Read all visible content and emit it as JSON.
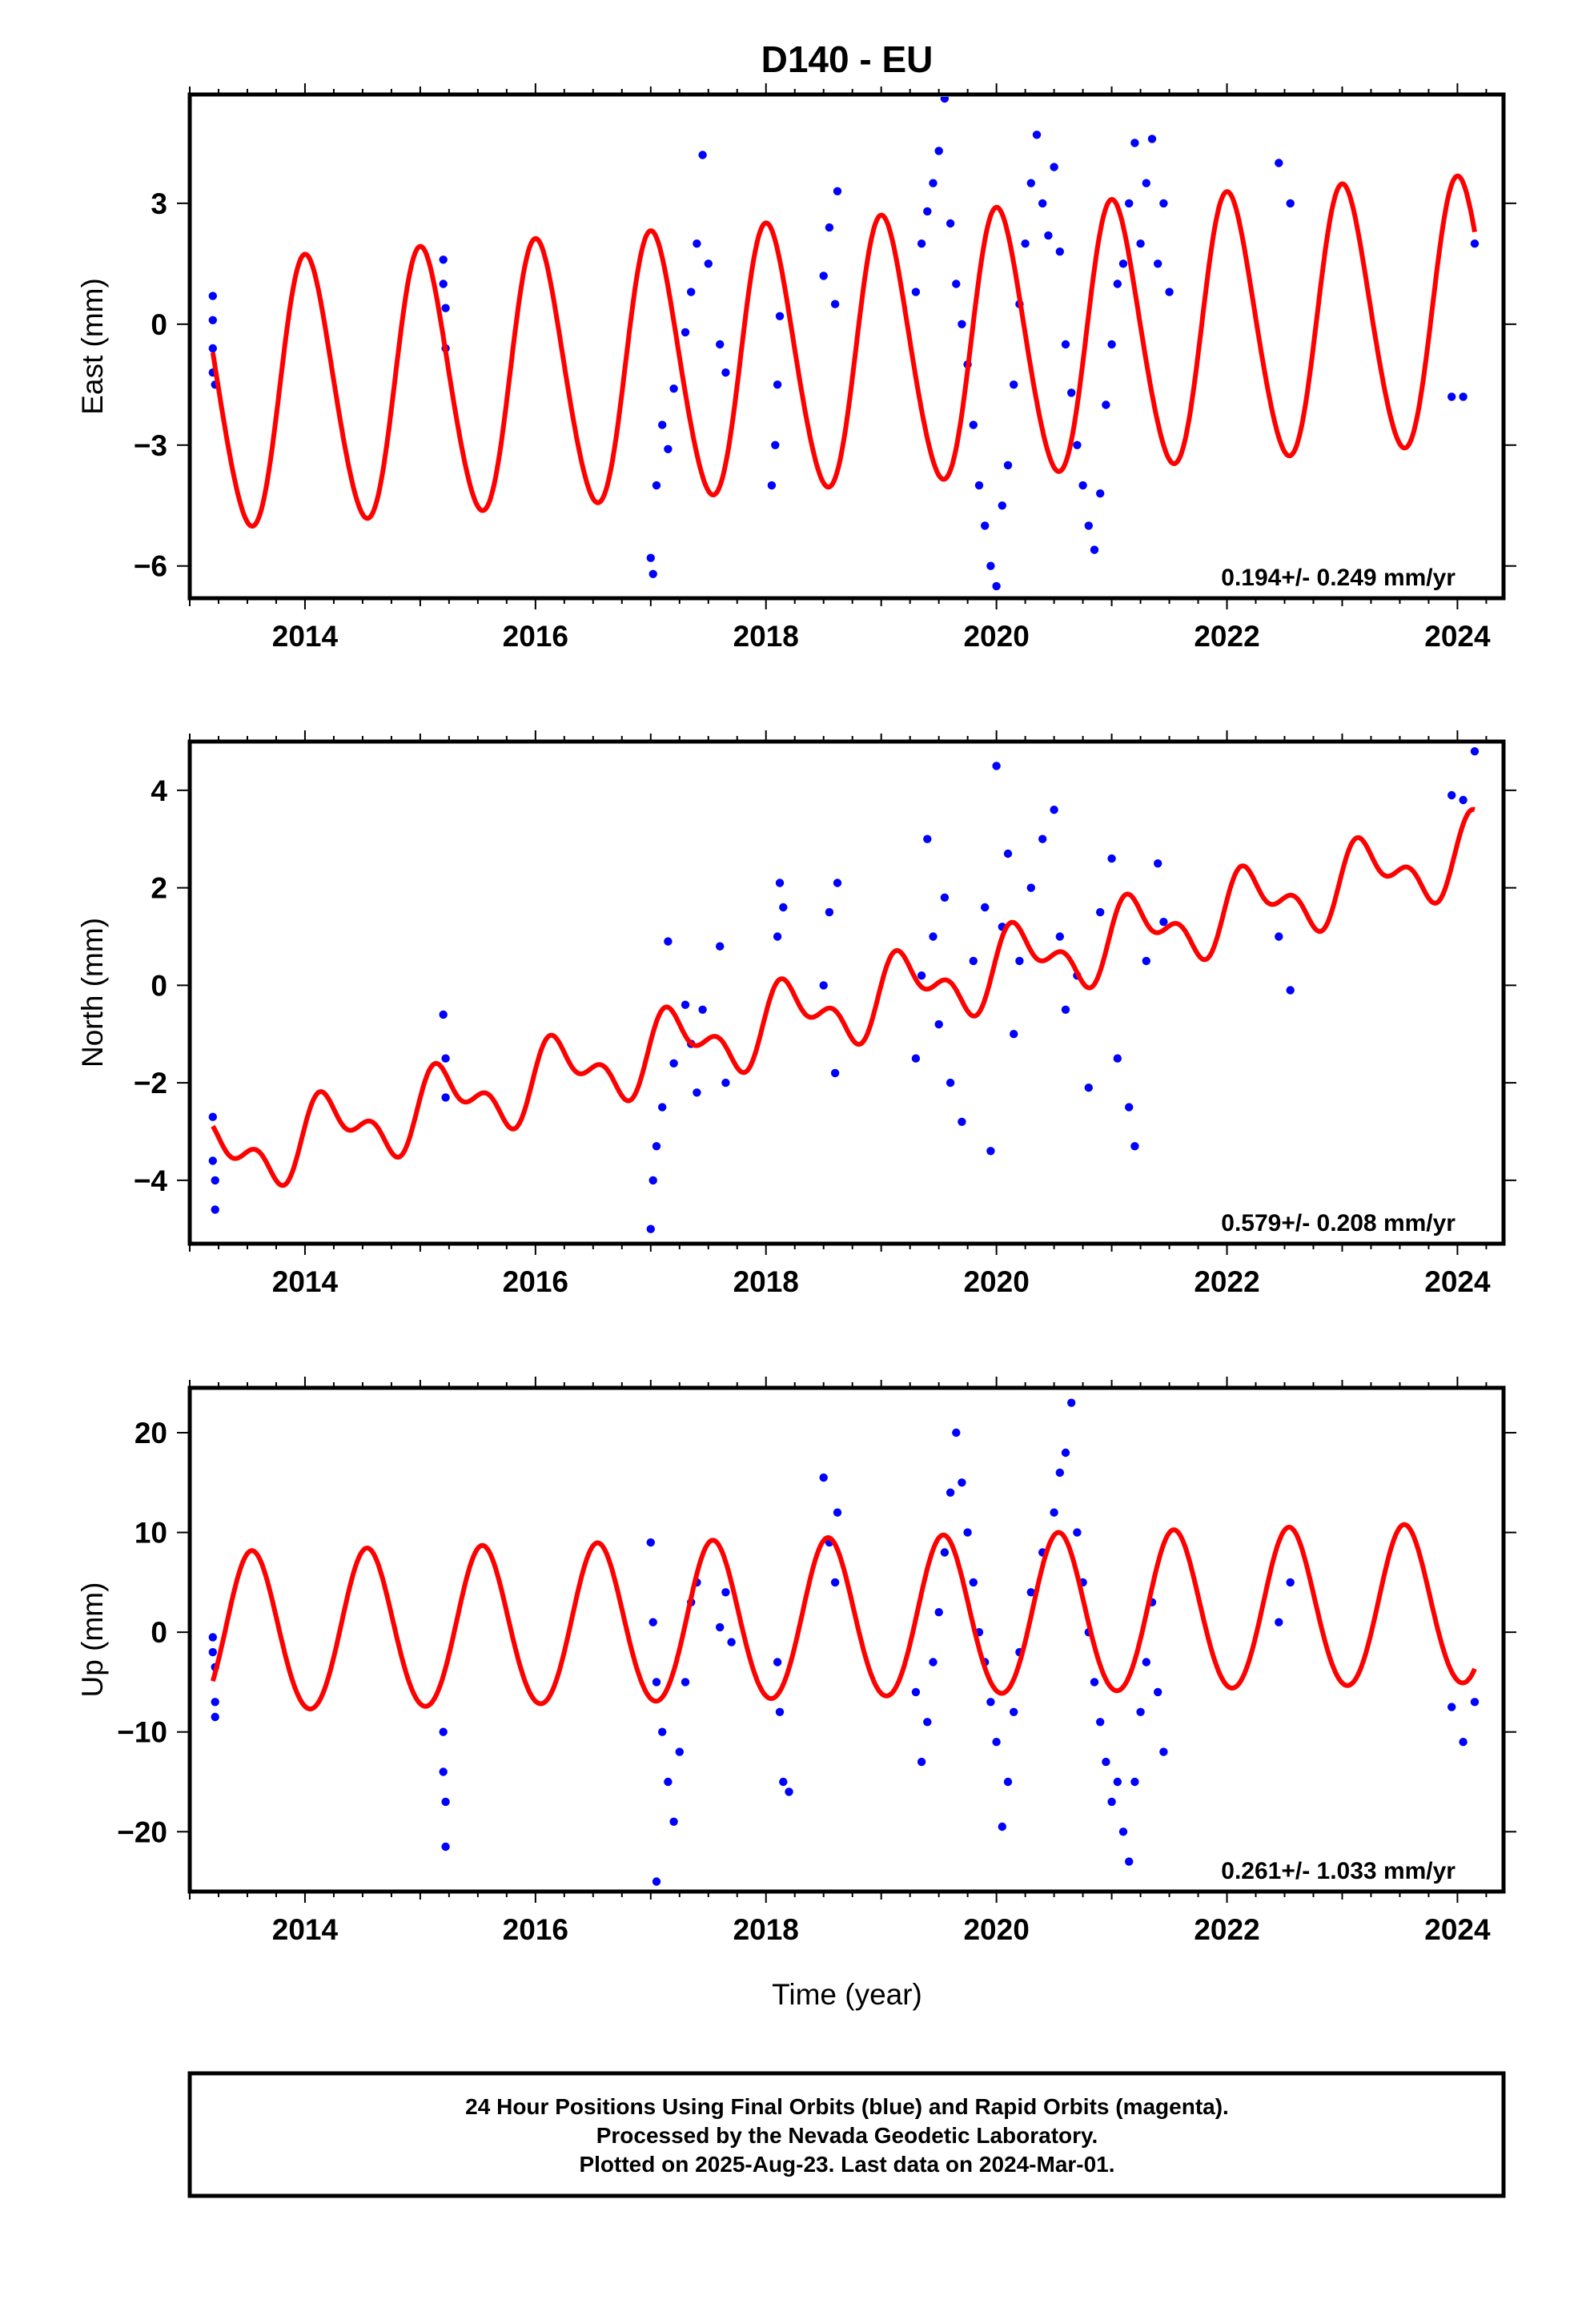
{
  "title": "D140 - EU",
  "colors": {
    "final_orbits": "#0000ff",
    "model": "#ff0000",
    "axis": "#000000"
  },
  "footer": {
    "line1": "24 Hour Positions Using Final Orbits (blue) and Rapid Orbits (magenta).",
    "line2": "Processed by the Nevada Geodetic Laboratory.",
    "line3": "Plotted on 2025-Aug-23. Last data on 2024-Mar-01."
  },
  "chart_data": [
    {
      "type": "scatter",
      "component": "east",
      "ylabel": "East (mm)",
      "xlabel": "",
      "xlim": [
        2013.0,
        2024.4
      ],
      "ylim": [
        -6.8,
        5.7
      ],
      "xticks": [
        2014,
        2016,
        2018,
        2020,
        2022,
        2024
      ],
      "xtick_labels": [
        "2014",
        "2016",
        "2018",
        "2020",
        "2022",
        "2024"
      ],
      "yticks": [
        -6,
        -3,
        0,
        3
      ],
      "ytick_labels": [
        "−6",
        "−3",
        "0",
        "3"
      ],
      "rate_label": "0.194+/- 0.249 mm/yr",
      "model": {
        "offset": -1.85,
        "rate": 0.194,
        "annual": 3.3,
        "semiannual": 0.25,
        "phase": 1.45
      },
      "series": [
        {
          "points": [
            [
              2013.2,
              -0.6
            ],
            [
              2013.2,
              0.1
            ],
            [
              2013.2,
              -1.2
            ],
            [
              2013.2,
              0.7
            ],
            [
              2013.22,
              -1.5
            ],
            [
              2015.2,
              1.6
            ],
            [
              2015.2,
              1.0
            ],
            [
              2015.22,
              -0.6
            ],
            [
              2015.22,
              0.4
            ],
            [
              2017.0,
              -5.8
            ],
            [
              2017.02,
              -6.2
            ],
            [
              2017.05,
              -4.0
            ],
            [
              2017.1,
              -2.5
            ],
            [
              2017.15,
              -3.1
            ],
            [
              2017.2,
              -1.6
            ],
            [
              2017.3,
              -0.2
            ],
            [
              2017.35,
              0.8
            ],
            [
              2017.4,
              2.0
            ],
            [
              2017.45,
              4.2
            ],
            [
              2017.5,
              1.5
            ],
            [
              2017.6,
              -0.5
            ],
            [
              2017.65,
              -1.2
            ],
            [
              2018.05,
              -4.0
            ],
            [
              2018.08,
              -3.0
            ],
            [
              2018.1,
              -1.5
            ],
            [
              2018.12,
              0.2
            ],
            [
              2018.5,
              1.2
            ],
            [
              2018.55,
              2.4
            ],
            [
              2018.6,
              0.5
            ],
            [
              2018.62,
              3.3
            ],
            [
              2019.3,
              0.8
            ],
            [
              2019.35,
              2.0
            ],
            [
              2019.4,
              2.8
            ],
            [
              2019.45,
              3.5
            ],
            [
              2019.5,
              4.3
            ],
            [
              2019.55,
              5.6
            ],
            [
              2019.6,
              2.5
            ],
            [
              2019.65,
              1.0
            ],
            [
              2019.7,
              0.0
            ],
            [
              2019.75,
              -1.0
            ],
            [
              2019.8,
              -2.5
            ],
            [
              2019.85,
              -4.0
            ],
            [
              2019.9,
              -5.0
            ],
            [
              2019.95,
              -6.0
            ],
            [
              2020.0,
              -6.5
            ],
            [
              2020.05,
              -4.5
            ],
            [
              2020.1,
              -3.5
            ],
            [
              2020.15,
              -1.5
            ],
            [
              2020.2,
              0.5
            ],
            [
              2020.25,
              2.0
            ],
            [
              2020.3,
              3.5
            ],
            [
              2020.35,
              4.7
            ],
            [
              2020.4,
              3.0
            ],
            [
              2020.45,
              2.2
            ],
            [
              2020.5,
              3.9
            ],
            [
              2020.55,
              1.8
            ],
            [
              2020.6,
              -0.5
            ],
            [
              2020.65,
              -1.7
            ],
            [
              2020.7,
              -3.0
            ],
            [
              2020.75,
              -4.0
            ],
            [
              2020.8,
              -5.0
            ],
            [
              2020.85,
              -5.6
            ],
            [
              2020.9,
              -4.2
            ],
            [
              2020.95,
              -2.0
            ],
            [
              2021.0,
              -0.5
            ],
            [
              2021.05,
              1.0
            ],
            [
              2021.1,
              1.5
            ],
            [
              2021.15,
              3.0
            ],
            [
              2021.2,
              4.5
            ],
            [
              2021.25,
              2.0
            ],
            [
              2021.3,
              3.5
            ],
            [
              2021.35,
              4.6
            ],
            [
              2021.4,
              1.5
            ],
            [
              2021.45,
              3.0
            ],
            [
              2021.5,
              0.8
            ],
            [
              2022.45,
              4.0
            ],
            [
              2022.55,
              3.0
            ],
            [
              2023.95,
              -1.8
            ],
            [
              2024.05,
              -1.8
            ],
            [
              2024.15,
              2.0
            ]
          ]
        }
      ]
    },
    {
      "type": "scatter",
      "component": "north",
      "ylabel": "North (mm)",
      "xlabel": "",
      "xlim": [
        2013.0,
        2024.4
      ],
      "ylim": [
        -5.3,
        5.0
      ],
      "xticks": [
        2014,
        2016,
        2018,
        2020,
        2022,
        2024
      ],
      "xtick_labels": [
        "2014",
        "2016",
        "2018",
        "2020",
        "2022",
        "2024"
      ],
      "yticks": [
        -4,
        -2,
        0,
        2,
        4
      ],
      "ytick_labels": [
        "−4",
        "−2",
        "0",
        "2",
        "4"
      ],
      "rate_label": "0.579+/- 0.208 mm/yr",
      "model": {
        "offset": -3.6,
        "rate": 0.579,
        "annual": 0.6,
        "semiannual": 0.4,
        "phase": 0.2
      },
      "series": [
        {
          "points": [
            [
              2013.2,
              -2.7
            ],
            [
              2013.2,
              -3.6
            ],
            [
              2013.22,
              -4.0
            ],
            [
              2013.22,
              -4.6
            ],
            [
              2015.2,
              -0.6
            ],
            [
              2015.22,
              -1.5
            ],
            [
              2015.22,
              -2.3
            ],
            [
              2017.0,
              -5.0
            ],
            [
              2017.02,
              -4.0
            ],
            [
              2017.05,
              -3.3
            ],
            [
              2017.1,
              -2.5
            ],
            [
              2017.15,
              0.9
            ],
            [
              2017.2,
              -1.6
            ],
            [
              2017.3,
              -0.4
            ],
            [
              2017.35,
              -1.2
            ],
            [
              2017.4,
              -2.2
            ],
            [
              2017.45,
              -0.5
            ],
            [
              2017.6,
              0.8
            ],
            [
              2017.65,
              -2.0
            ],
            [
              2018.1,
              1.0
            ],
            [
              2018.12,
              2.1
            ],
            [
              2018.15,
              1.6
            ],
            [
              2018.5,
              0.0
            ],
            [
              2018.55,
              1.5
            ],
            [
              2018.6,
              -1.8
            ],
            [
              2018.62,
              2.1
            ],
            [
              2019.3,
              -1.5
            ],
            [
              2019.35,
              0.2
            ],
            [
              2019.4,
              3.0
            ],
            [
              2019.45,
              1.0
            ],
            [
              2019.5,
              -0.8
            ],
            [
              2019.55,
              1.8
            ],
            [
              2019.6,
              -2.0
            ],
            [
              2019.7,
              -2.8
            ],
            [
              2019.8,
              0.5
            ],
            [
              2019.9,
              1.6
            ],
            [
              2019.95,
              -3.4
            ],
            [
              2020.0,
              4.5
            ],
            [
              2020.05,
              1.2
            ],
            [
              2020.1,
              2.7
            ],
            [
              2020.15,
              -1.0
            ],
            [
              2020.2,
              0.5
            ],
            [
              2020.3,
              2.0
            ],
            [
              2020.4,
              3.0
            ],
            [
              2020.5,
              3.6
            ],
            [
              2020.55,
              1.0
            ],
            [
              2020.6,
              -0.5
            ],
            [
              2020.7,
              0.2
            ],
            [
              2020.8,
              -2.1
            ],
            [
              2020.9,
              1.5
            ],
            [
              2021.0,
              2.6
            ],
            [
              2021.05,
              -1.5
            ],
            [
              2021.15,
              -2.5
            ],
            [
              2021.2,
              -3.3
            ],
            [
              2021.3,
              0.5
            ],
            [
              2021.4,
              2.5
            ],
            [
              2021.45,
              1.3
            ],
            [
              2022.45,
              1.0
            ],
            [
              2022.55,
              -0.1
            ],
            [
              2023.95,
              3.9
            ],
            [
              2024.05,
              3.8
            ],
            [
              2024.15,
              4.8
            ]
          ]
        }
      ]
    },
    {
      "type": "scatter",
      "component": "up",
      "ylabel": "Up (mm)",
      "xlabel": "Time (year)",
      "xlim": [
        2013.0,
        2024.4
      ],
      "ylim": [
        -26,
        24.5
      ],
      "xticks": [
        2014,
        2016,
        2018,
        2020,
        2022,
        2024
      ],
      "xtick_labels": [
        "2014",
        "2016",
        "2018",
        "2020",
        "2022",
        "2024"
      ],
      "yticks": [
        -20,
        -10,
        0,
        10,
        20
      ],
      "ytick_labels": [
        "−20",
        "−10",
        "0",
        "10",
        "20"
      ],
      "rate_label": "0.261+/- 1.033 mm/yr",
      "model": {
        "offset": -0.3,
        "rate": 0.261,
        "annual": 8.0,
        "semiannual": 0.4,
        "phase": 4.45
      },
      "series": [
        {
          "points": [
            [
              2013.2,
              -0.5
            ],
            [
              2013.2,
              -2.0
            ],
            [
              2013.22,
              -3.5
            ],
            [
              2013.22,
              -7.0
            ],
            [
              2013.22,
              -8.5
            ],
            [
              2015.2,
              -10.0
            ],
            [
              2015.2,
              -14.0
            ],
            [
              2015.22,
              -17.0
            ],
            [
              2015.22,
              -21.5
            ],
            [
              2017.0,
              9.0
            ],
            [
              2017.02,
              1.0
            ],
            [
              2017.05,
              -5.0
            ],
            [
              2017.1,
              -10.0
            ],
            [
              2017.15,
              -15.0
            ],
            [
              2017.2,
              -19.0
            ],
            [
              2017.25,
              -12.0
            ],
            [
              2017.3,
              -5.0
            ],
            [
              2017.35,
              3.0
            ],
            [
              2017.4,
              5.0
            ],
            [
              2017.05,
              -25.0
            ],
            [
              2017.6,
              0.5
            ],
            [
              2017.65,
              4.0
            ],
            [
              2017.7,
              -1.0
            ],
            [
              2018.1,
              -3.0
            ],
            [
              2018.12,
              -8.0
            ],
            [
              2018.15,
              -15.0
            ],
            [
              2018.2,
              -16.0
            ],
            [
              2018.5,
              15.5
            ],
            [
              2018.55,
              9.0
            ],
            [
              2018.6,
              5.0
            ],
            [
              2018.62,
              12.0
            ],
            [
              2019.3,
              -6.0
            ],
            [
              2019.35,
              -13.0
            ],
            [
              2019.4,
              -9.0
            ],
            [
              2019.45,
              -3.0
            ],
            [
              2019.5,
              2.0
            ],
            [
              2019.55,
              8.0
            ],
            [
              2019.6,
              14.0
            ],
            [
              2019.65,
              20.0
            ],
            [
              2019.7,
              15.0
            ],
            [
              2019.75,
              10.0
            ],
            [
              2019.8,
              5.0
            ],
            [
              2019.85,
              0.0
            ],
            [
              2019.9,
              -3.0
            ],
            [
              2019.95,
              -7.0
            ],
            [
              2020.0,
              -11.0
            ],
            [
              2020.05,
              -19.5
            ],
            [
              2020.1,
              -15.0
            ],
            [
              2020.15,
              -8.0
            ],
            [
              2020.2,
              -2.0
            ],
            [
              2020.3,
              4.0
            ],
            [
              2020.4,
              8.0
            ],
            [
              2020.5,
              12.0
            ],
            [
              2020.55,
              16.0
            ],
            [
              2020.6,
              18.0
            ],
            [
              2020.65,
              23.0
            ],
            [
              2020.7,
              10.0
            ],
            [
              2020.75,
              5.0
            ],
            [
              2020.8,
              0.0
            ],
            [
              2020.85,
              -5.0
            ],
            [
              2020.9,
              -9.0
            ],
            [
              2020.95,
              -13.0
            ],
            [
              2021.0,
              -17.0
            ],
            [
              2021.05,
              -15.0
            ],
            [
              2021.1,
              -20.0
            ],
            [
              2021.15,
              -23.0
            ],
            [
              2021.2,
              -15.0
            ],
            [
              2021.25,
              -8.0
            ],
            [
              2021.3,
              -3.0
            ],
            [
              2021.35,
              3.0
            ],
            [
              2021.4,
              -6.0
            ],
            [
              2021.45,
              -12.0
            ],
            [
              2022.45,
              1.0
            ],
            [
              2022.55,
              5.0
            ],
            [
              2023.95,
              -7.5
            ],
            [
              2024.05,
              -11.0
            ],
            [
              2024.15,
              -7.0
            ]
          ]
        }
      ]
    }
  ]
}
